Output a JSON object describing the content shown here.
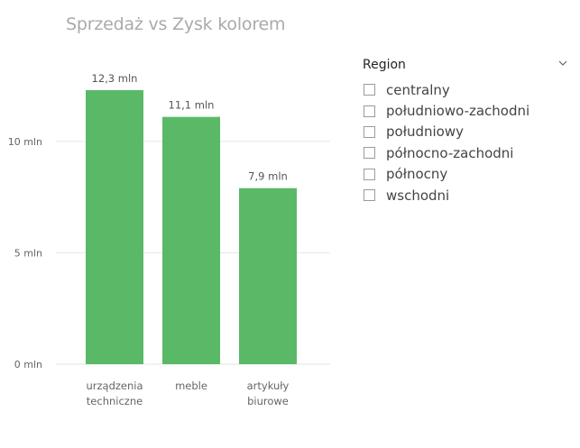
{
  "chart_data": {
    "type": "bar",
    "title": "Sprzedaż vs Zysk kolorem",
    "categories": [
      [
        "urządzenia",
        "techniczne"
      ],
      [
        "meble"
      ],
      [
        "artykuły",
        "biurowe"
      ]
    ],
    "values": [
      12.3,
      11.1,
      7.9
    ],
    "data_labels": [
      "12,3 mln",
      "11,1 mln",
      "7,9 mln"
    ],
    "y_ticks": [
      {
        "value": 0,
        "label": "0 mln"
      },
      {
        "value": 5,
        "label": "5 mln"
      },
      {
        "value": 10,
        "label": "10 mln"
      }
    ],
    "ylim": [
      0,
      12.3
    ],
    "xlabel": "",
    "ylabel": "",
    "grid": true,
    "bar_color": "#5ab966",
    "grid_color": "#e6e6e6",
    "text_color": "#666666"
  },
  "slicer": {
    "title": "Region",
    "chevron_icon": "chevron-down-icon",
    "items": [
      {
        "label": "centralny",
        "checked": false
      },
      {
        "label": "południowo-zachodni",
        "checked": false
      },
      {
        "label": "południowy",
        "checked": false
      },
      {
        "label": "północno-zachodni",
        "checked": false
      },
      {
        "label": "północny",
        "checked": false
      },
      {
        "label": "wschodni",
        "checked": false
      }
    ]
  }
}
